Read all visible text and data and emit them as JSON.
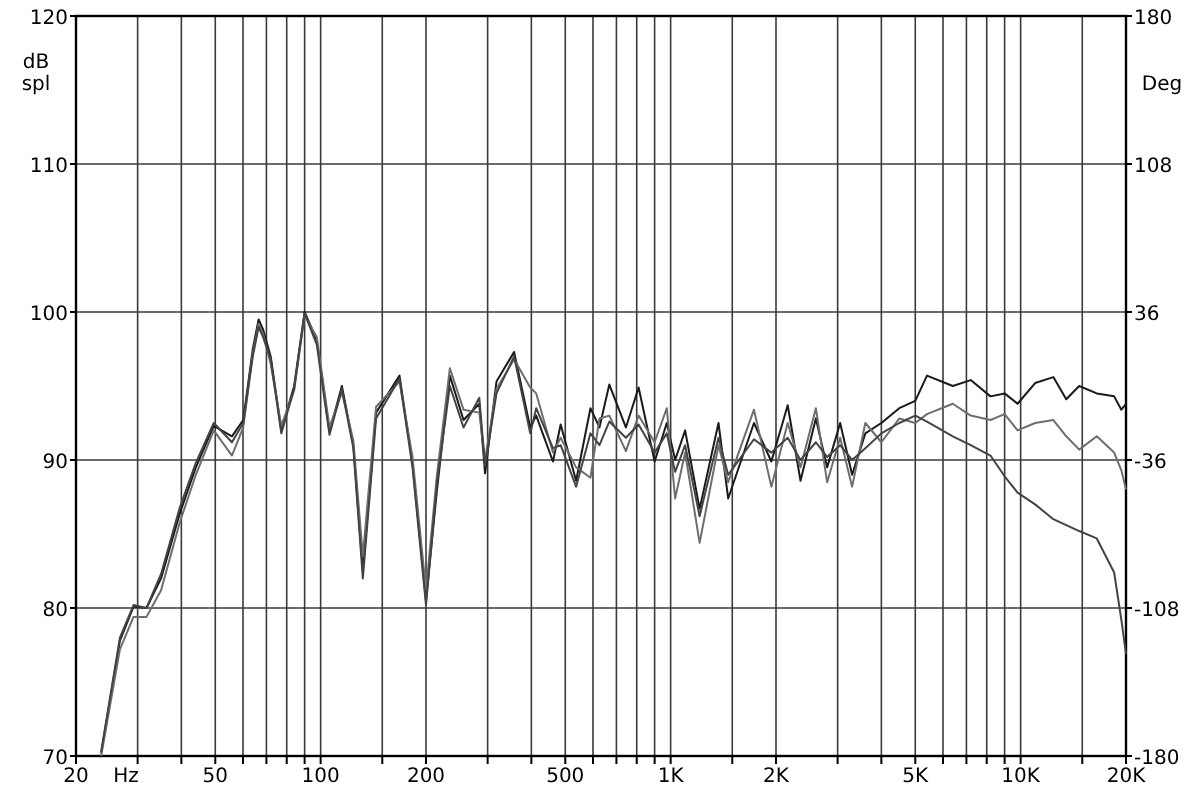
{
  "chart_data": {
    "type": "line",
    "xlabel": "Hz",
    "ylabel": "dB spl",
    "y2label": "Deg",
    "log": "x",
    "grid": true,
    "marker": "none",
    "line_style": "solid",
    "x": [
      23.6,
      26.7,
      29.2,
      31.8,
      35,
      39.6,
      44,
      49.5,
      55.8,
      60.1,
      64,
      66.5,
      68.5,
      72,
      77.2,
      84,
      90,
      97.5,
      106,
      115,
      124,
      132,
      144,
      168,
      183,
      200,
      215,
      234,
      256,
      284,
      295,
      318,
      357,
      397,
      413,
      461,
      485,
      537,
      590,
      626,
      668,
      745,
      810,
      900,
      975,
      1030,
      1100,
      1210,
      1370,
      1460,
      1730,
      1940,
      2160,
      2350,
      2600,
      2800,
      3050,
      3300,
      3600,
      4000,
      4500,
      5000,
      5400,
      6400,
      7200,
      8200,
      9000,
      9800,
      11000,
      12400,
      13500,
      14700,
      16500,
      18500,
      19400,
      20000
    ],
    "xlim": [
      20,
      20000
    ],
    "xticks": [
      20,
      {
        "value": 30,
        "label": null
      },
      {
        "value": 40,
        "label": null
      },
      50,
      {
        "value": 60,
        "label": null
      },
      {
        "value": 70,
        "label": null
      },
      {
        "value": 80,
        "label": null
      },
      {
        "value": 90,
        "label": null
      },
      100,
      {
        "value": 150,
        "label": null
      },
      200,
      {
        "value": 300,
        "label": null
      },
      {
        "value": 400,
        "label": null
      },
      500,
      {
        "value": 600,
        "label": null
      },
      {
        "value": 700,
        "label": null
      },
      {
        "value": 800,
        "label": null
      },
      {
        "value": 900,
        "label": null
      },
      {
        "value": 1000,
        "label": "1K"
      },
      {
        "value": 1500,
        "label": null
      },
      {
        "value": 2000,
        "label": "2K"
      },
      {
        "value": 3000,
        "label": null
      },
      {
        "value": 4000,
        "label": null
      },
      {
        "value": 5000,
        "label": "5K"
      },
      {
        "value": 6000,
        "label": null
      },
      {
        "value": 7000,
        "label": null
      },
      {
        "value": 8000,
        "label": null
      },
      {
        "value": 9000,
        "label": null
      },
      {
        "value": 10000,
        "label": "10K"
      },
      {
        "value": 15000,
        "label": null
      },
      {
        "value": 20000,
        "label": "20K"
      }
    ],
    "ylim": [
      70,
      120
    ],
    "yticks": [
      70,
      80,
      90,
      100,
      110,
      120
    ],
    "y2lim": [
      -180,
      180
    ],
    "y2ticks": [
      -180,
      -108,
      -36,
      36,
      108,
      180
    ],
    "series": [
      {
        "color": "#1a1a1a",
        "values": [
          70.2,
          77.8,
          80.1,
          80.0,
          82,
          86.4,
          89.5,
          92.3,
          91.6,
          92.7,
          97.5,
          99.5,
          98.8,
          97,
          92.0,
          95,
          100,
          98.1,
          91.9,
          95.0,
          91,
          82.5,
          93.2,
          95.7,
          89.8,
          80.5,
          88,
          95.7,
          92.7,
          93.8,
          89.1,
          95.3,
          97.3,
          92.2,
          93,
          89.9,
          92.4,
          88.6,
          93.5,
          92.2,
          95.1,
          92.2,
          94.9,
          89.9,
          92.5,
          90,
          92,
          86.7,
          92.5,
          87.4,
          92.5,
          89.9,
          93.7,
          88.6,
          92.8,
          89.5,
          92.5,
          89.0,
          91.8,
          92.5,
          93.5,
          94.0,
          95.7,
          95.0,
          95.4,
          94.3,
          94.5,
          93.8,
          95.2,
          95.6,
          94.1,
          95.0,
          94.5,
          94.3,
          93.4,
          93.8
        ]
      },
      {
        "color": "#6e6e6e",
        "values": [
          70.0,
          77.2,
          79.4,
          79.4,
          81.2,
          85.8,
          89,
          92.0,
          90.3,
          92.2,
          97.2,
          99.2,
          98.5,
          96.5,
          92.3,
          94.7,
          99.8,
          98.3,
          92.2,
          94.6,
          91.3,
          83.5,
          93.6,
          95.3,
          90.2,
          81.2,
          89,
          96.2,
          93.4,
          93.2,
          90,
          94.8,
          96.8,
          94.9,
          94.5,
          90.5,
          91.5,
          89.5,
          88.8,
          92.8,
          93,
          90.6,
          93,
          91.2,
          93.5,
          87.4,
          90.5,
          84.4,
          91,
          88.5,
          93.4,
          88.2,
          92.5,
          89.5,
          93.5,
          88.5,
          91.5,
          88.2,
          92.5,
          91.2,
          92.8,
          92.5,
          93.1,
          93.8,
          93,
          92.7,
          93.1,
          92.0,
          92.5,
          92.7,
          91.6,
          90.7,
          91.6,
          90.5,
          89.3,
          88.0
        ]
      },
      {
        "color": "#444444",
        "values": [
          70.3,
          78,
          80.2,
          80.0,
          82.3,
          86.8,
          89.8,
          92.5,
          91.2,
          92.5,
          97.0,
          99.0,
          98.3,
          96.8,
          91.8,
          94.8,
          99.9,
          97.8,
          91.7,
          94.8,
          90.8,
          82.0,
          92.8,
          95.5,
          89.5,
          80.2,
          88.5,
          95.0,
          92.2,
          94.2,
          89.6,
          94.5,
          97.0,
          91.8,
          93.5,
          90.8,
          91.0,
          88.2,
          91.8,
          91.0,
          92.6,
          91.5,
          92.4,
          90.5,
          91.8,
          89.2,
          91,
          86.2,
          91.5,
          89,
          91.4,
          90.5,
          91.5,
          90.0,
          91.2,
          90.2,
          91.0,
          90.0,
          90.8,
          91.8,
          92.5,
          93.0,
          92.6,
          91.6,
          91.0,
          90.3,
          88.9,
          87.8,
          87.0,
          86.0,
          85.6,
          85.2,
          84.7,
          82.4,
          79.2,
          76.9
        ]
      }
    ]
  }
}
